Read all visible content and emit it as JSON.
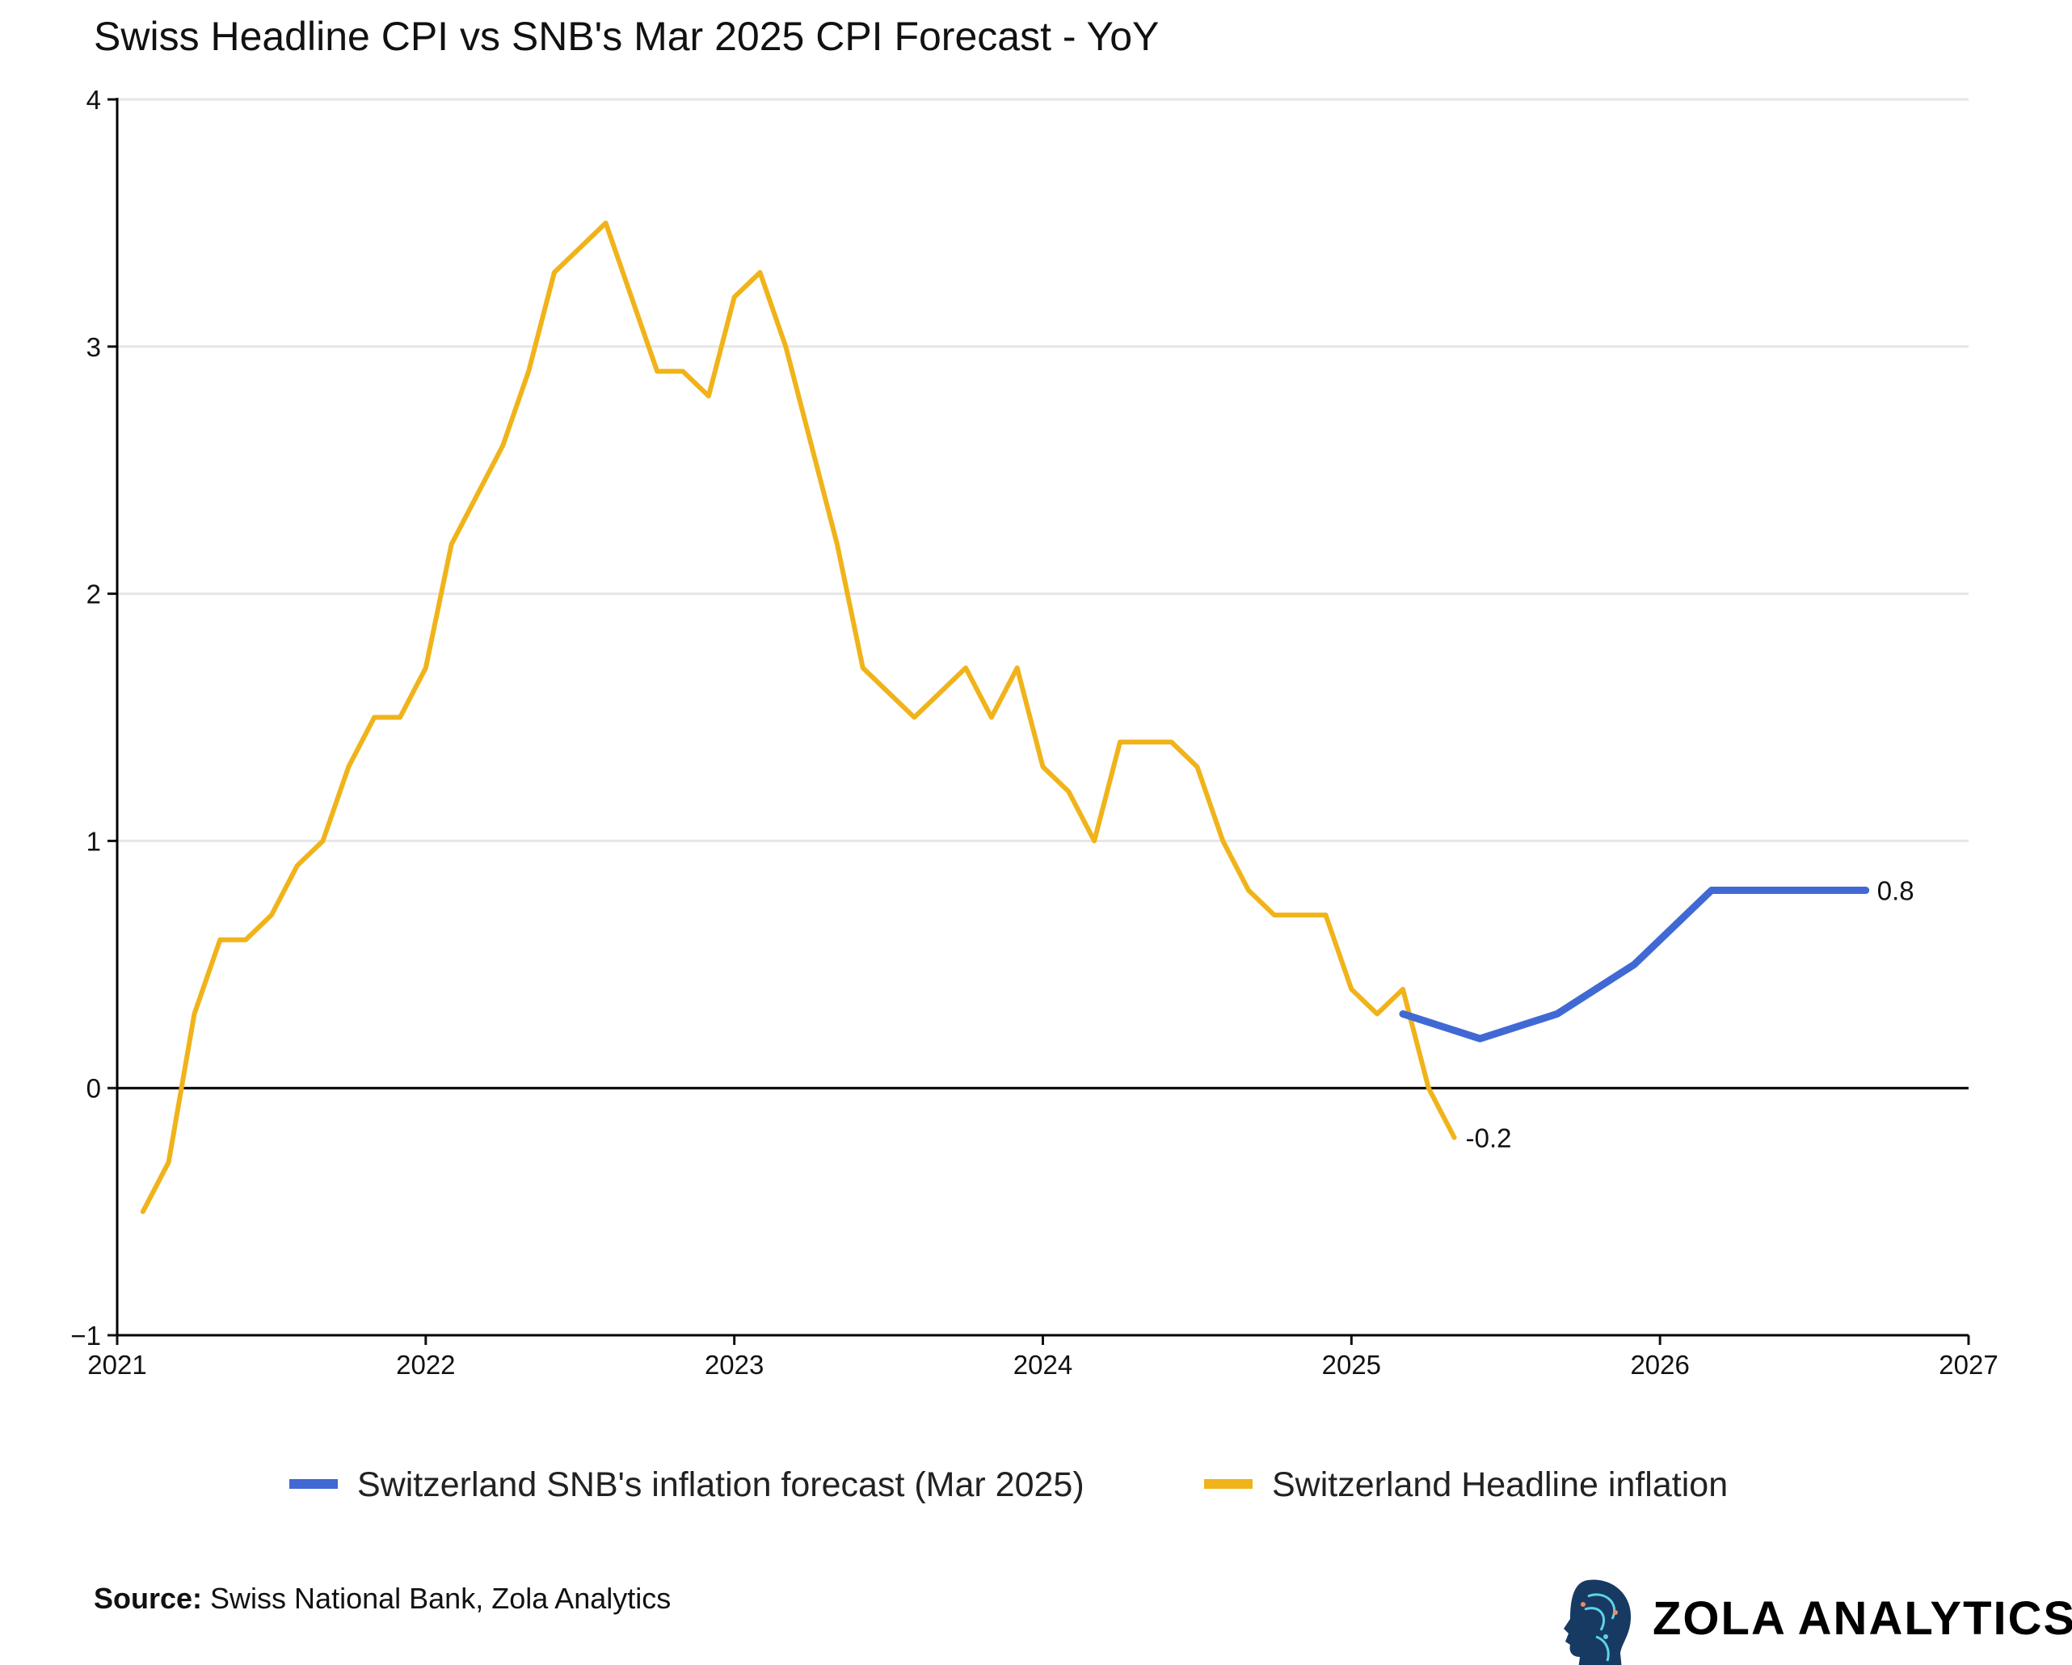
{
  "chart_data": {
    "type": "line",
    "title": "Swiss Headline CPI vs SNB's Mar 2025 CPI Forecast - YoY",
    "xlabel": "",
    "ylabel": "",
    "xlim": [
      "2021-01-01",
      "2027-01-01"
    ],
    "ylim": [
      -1,
      4
    ],
    "x_ticks": [
      "2021",
      "2022",
      "2023",
      "2024",
      "2025",
      "2026",
      "2027"
    ],
    "y_ticks": [
      -1,
      0,
      1,
      2,
      3,
      4
    ],
    "y_tick_labels": [
      "−1",
      "0",
      "1",
      "2",
      "3",
      "4"
    ],
    "grid": "horizontal",
    "legend_position": "bottom",
    "series": [
      {
        "name": "Switzerland SNB's inflation forecast (Mar 2025)",
        "color": "#4169D4",
        "end_label": "0.8",
        "x": [
          "2025-03",
          "2025-06",
          "2025-09",
          "2025-12",
          "2026-03",
          "2026-06",
          "2026-09"
        ],
        "values": [
          0.3,
          0.2,
          0.3,
          0.5,
          0.8,
          0.8,
          0.8
        ]
      },
      {
        "name": "Switzerland Headline inflation",
        "color": "#F0B31A",
        "end_label": "-0.2",
        "x": [
          "2021-02",
          "2021-03",
          "2021-04",
          "2021-05",
          "2021-06",
          "2021-07",
          "2021-08",
          "2021-09",
          "2021-10",
          "2021-11",
          "2021-12",
          "2022-01",
          "2022-02",
          "2022-03",
          "2022-04",
          "2022-05",
          "2022-06",
          "2022-07",
          "2022-08",
          "2022-09",
          "2022-10",
          "2022-11",
          "2022-12",
          "2023-01",
          "2023-02",
          "2023-03",
          "2023-04",
          "2023-05",
          "2023-06",
          "2023-07",
          "2023-08",
          "2023-09",
          "2023-10",
          "2023-11",
          "2023-12",
          "2024-01",
          "2024-02",
          "2024-03",
          "2024-04",
          "2024-05",
          "2024-06",
          "2024-07",
          "2024-08",
          "2024-09",
          "2024-10",
          "2024-11",
          "2024-12",
          "2025-01",
          "2025-02",
          "2025-03",
          "2025-04",
          "2025-05"
        ],
        "values": [
          -0.5,
          -0.3,
          0.3,
          0.6,
          0.6,
          0.7,
          0.9,
          1.0,
          1.3,
          1.5,
          1.5,
          1.7,
          2.2,
          2.4,
          2.6,
          2.9,
          3.3,
          3.4,
          3.5,
          3.2,
          2.9,
          2.9,
          2.8,
          3.2,
          3.3,
          3.0,
          2.6,
          2.2,
          1.7,
          1.6,
          1.5,
          1.6,
          1.7,
          1.5,
          1.7,
          1.3,
          1.2,
          1.0,
          1.4,
          1.4,
          1.4,
          1.3,
          1.0,
          0.8,
          0.7,
          0.7,
          0.7,
          0.4,
          0.3,
          0.4,
          0.0,
          -0.2
        ]
      }
    ]
  },
  "footer": {
    "source_label": "Source:",
    "source_text": " Swiss National Bank, Zola Analytics",
    "logo_text": "ZOLA ANALYTICS"
  }
}
